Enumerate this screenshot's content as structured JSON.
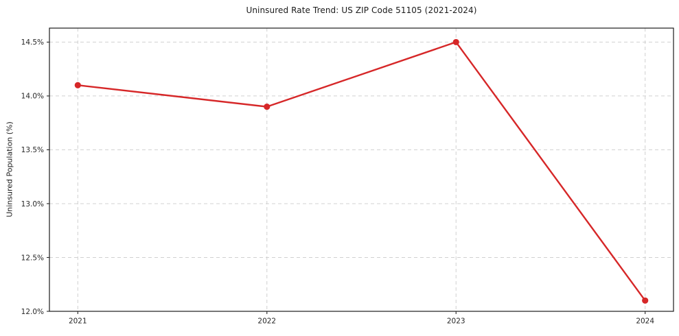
{
  "chart_data": {
    "type": "line",
    "title": "Uninsured Rate Trend: US ZIP Code 51105 (2021-2024)",
    "xlabel": "",
    "ylabel": "Uninsured Population (%)",
    "categories": [
      "2021",
      "2022",
      "2023",
      "2024"
    ],
    "values": [
      14.1,
      13.9,
      14.5,
      12.1
    ],
    "y_ticks": [
      "12.0%",
      "12.5%",
      "13.0%",
      "13.5%",
      "14.0%",
      "14.5%"
    ],
    "y_tick_values": [
      12.0,
      12.5,
      13.0,
      13.5,
      14.0,
      14.5
    ],
    "ylim": [
      12.0,
      14.63
    ],
    "xlim": [
      -0.15,
      3.15
    ],
    "grid": true,
    "grid_style": "dashed",
    "legend_position": "none",
    "line_color": "#d62728",
    "marker": "circle",
    "grid_color": "#d0d0d0",
    "spine_color": "#1a1a1a",
    "tick_color": "#262626"
  }
}
